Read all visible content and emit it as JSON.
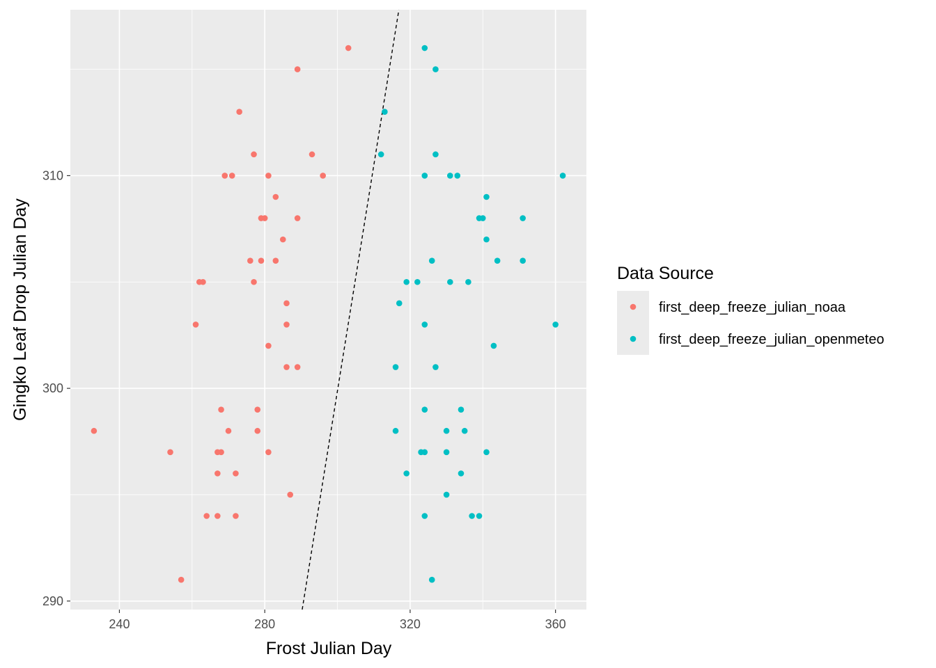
{
  "chart_data": {
    "type": "scatter",
    "xlabel": "Frost Julian Day",
    "ylabel": "Gingko Leaf Drop Julian Day",
    "xlim": [
      226.5,
      368.5
    ],
    "ylim": [
      289.6,
      317.8
    ],
    "x_ticks": [
      240,
      280,
      320,
      360
    ],
    "y_ticks": [
      290,
      300,
      310
    ],
    "x_minor": [
      260,
      300,
      340
    ],
    "y_minor": [
      295,
      305,
      315
    ],
    "grid": true,
    "legend": {
      "title": "Data Source",
      "position": "right"
    },
    "reference_line": {
      "style": "dashed",
      "points": [
        [
          290.3,
          289.6
        ],
        [
          316.9,
          317.8
        ]
      ]
    },
    "series": [
      {
        "name": "first_deep_freeze_julian_noaa",
        "color": "#F8766D",
        "points": [
          [
            303,
            316
          ],
          [
            289,
            315
          ],
          [
            273,
            313
          ],
          [
            277,
            311
          ],
          [
            293,
            311
          ],
          [
            269,
            310
          ],
          [
            271,
            310
          ],
          [
            281,
            310
          ],
          [
            296,
            310
          ],
          [
            283,
            309
          ],
          [
            279,
            308
          ],
          [
            280,
            308
          ],
          [
            289,
            308
          ],
          [
            285,
            307
          ],
          [
            276,
            306
          ],
          [
            279,
            306
          ],
          [
            283,
            306
          ],
          [
            262,
            305
          ],
          [
            263,
            305
          ],
          [
            277,
            305
          ],
          [
            286,
            304
          ],
          [
            261,
            303
          ],
          [
            286,
            303
          ],
          [
            281,
            302
          ],
          [
            286,
            301
          ],
          [
            289,
            301
          ],
          [
            268,
            299
          ],
          [
            278,
            299
          ],
          [
            233,
            298
          ],
          [
            270,
            298
          ],
          [
            278,
            298
          ],
          [
            254,
            297
          ],
          [
            267,
            297
          ],
          [
            268,
            297
          ],
          [
            281,
            297
          ],
          [
            267,
            296
          ],
          [
            272,
            296
          ],
          [
            287,
            295
          ],
          [
            264,
            294
          ],
          [
            267,
            294
          ],
          [
            272,
            294
          ],
          [
            257,
            291
          ]
        ]
      },
      {
        "name": "first_deep_freeze_julian_openmeteo",
        "color": "#00BFC4",
        "points": [
          [
            324,
            316
          ],
          [
            327,
            315
          ],
          [
            313,
            313
          ],
          [
            312,
            311
          ],
          [
            327,
            311
          ],
          [
            324,
            310
          ],
          [
            331,
            310
          ],
          [
            333,
            310
          ],
          [
            362,
            310
          ],
          [
            341,
            309
          ],
          [
            339,
            308
          ],
          [
            340,
            308
          ],
          [
            351,
            308
          ],
          [
            341,
            307
          ],
          [
            326,
            306
          ],
          [
            344,
            306
          ],
          [
            351,
            306
          ],
          [
            319,
            305
          ],
          [
            322,
            305
          ],
          [
            331,
            305
          ],
          [
            336,
            305
          ],
          [
            317,
            304
          ],
          [
            324,
            303
          ],
          [
            360,
            303
          ],
          [
            343,
            302
          ],
          [
            316,
            301
          ],
          [
            327,
            301
          ],
          [
            324,
            299
          ],
          [
            334,
            299
          ],
          [
            316,
            298
          ],
          [
            330,
            298
          ],
          [
            335,
            298
          ],
          [
            323,
            297
          ],
          [
            324,
            297
          ],
          [
            330,
            297
          ],
          [
            341,
            297
          ],
          [
            319,
            296
          ],
          [
            334,
            296
          ],
          [
            330,
            295
          ],
          [
            324,
            294
          ],
          [
            337,
            294
          ],
          [
            339,
            294
          ],
          [
            326,
            291
          ]
        ]
      }
    ]
  }
}
